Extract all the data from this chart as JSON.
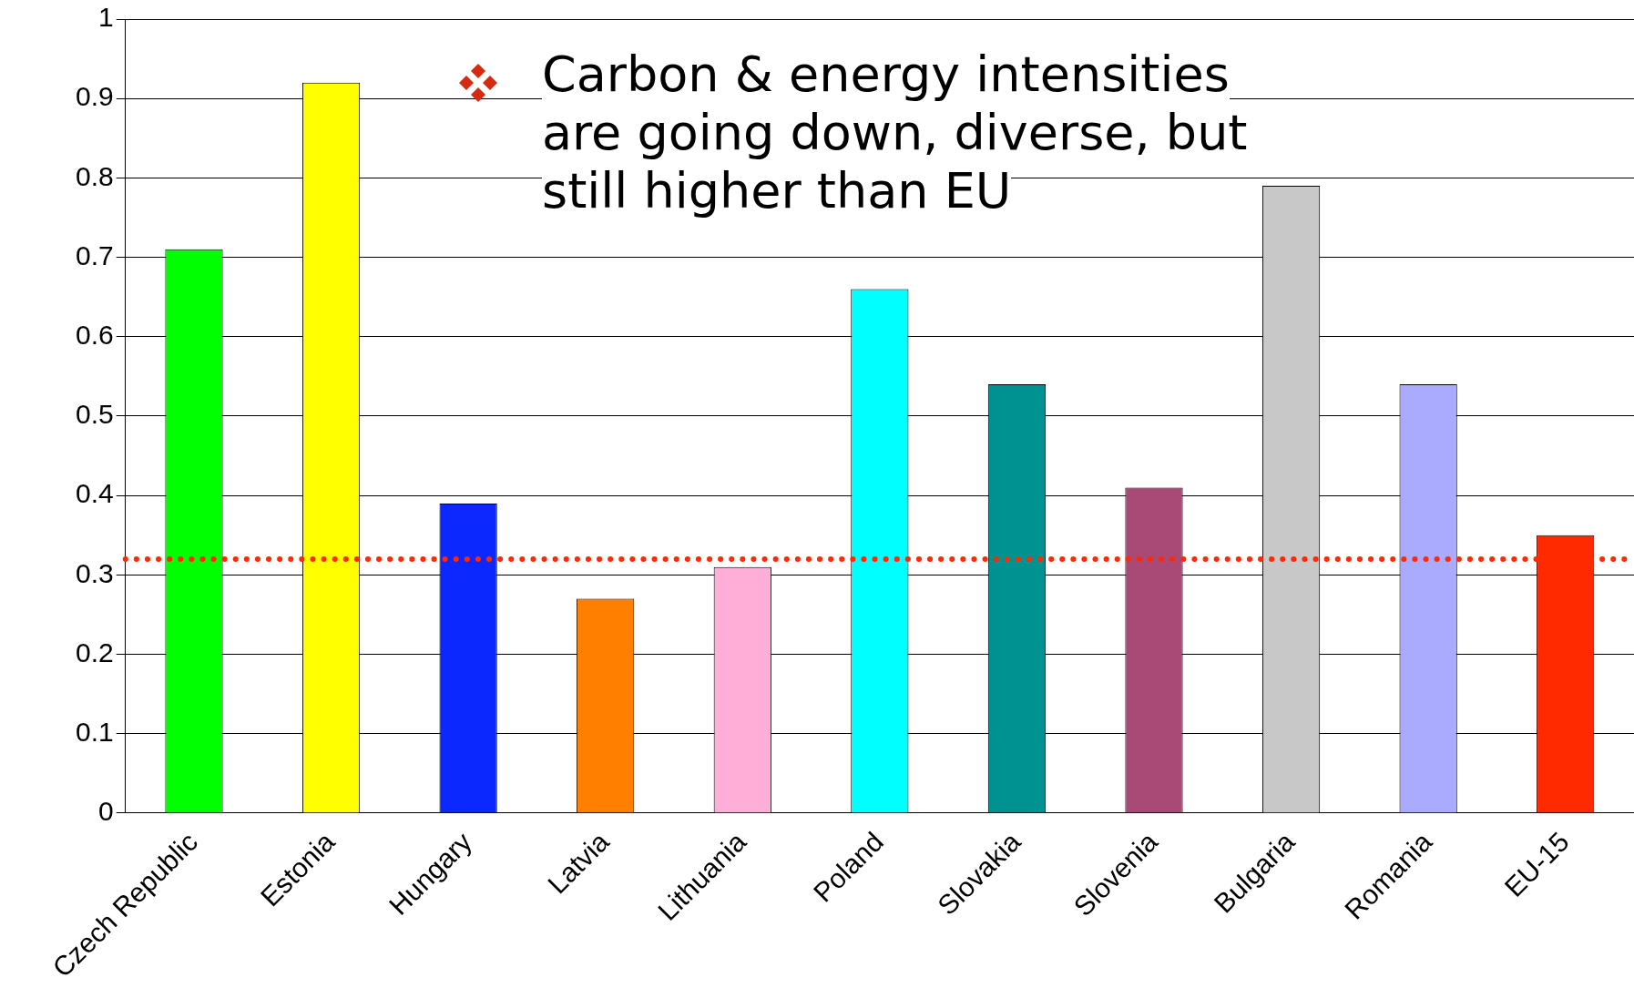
{
  "chart_data": {
    "type": "bar",
    "categories": [
      "Czech Republic",
      "Estonia",
      "Hungary",
      "Latvia",
      "Lithuania",
      "Poland",
      "Slovakia",
      "Slovenia",
      "Bulgaria",
      "Romania",
      "EU-15"
    ],
    "values": [
      0.71,
      0.92,
      0.39,
      0.27,
      0.31,
      0.66,
      0.54,
      0.41,
      0.79,
      0.54,
      0.35
    ],
    "colors": [
      "#00ff00",
      "#ffff00",
      "#0a28ff",
      "#ff7f00",
      "#ffaed8",
      "#00ffff",
      "#009191",
      "#a84a75",
      "#c8c8c8",
      "#aaaaff",
      "#ff2a00"
    ],
    "ylim": [
      0,
      1
    ],
    "yticks": [
      0,
      0.1,
      0.2,
      0.3,
      0.4,
      0.5,
      0.6,
      0.7,
      0.8,
      0.9,
      1
    ],
    "grid": "y",
    "legend": false,
    "ref_lines": [
      {
        "axis": "y",
        "value": 0.32,
        "color": "#ff2a00",
        "line_style": "dotted"
      }
    ],
    "annotations": [
      "Carbon & energy intensities are going down, diverse, but still higher than EU"
    ]
  }
}
